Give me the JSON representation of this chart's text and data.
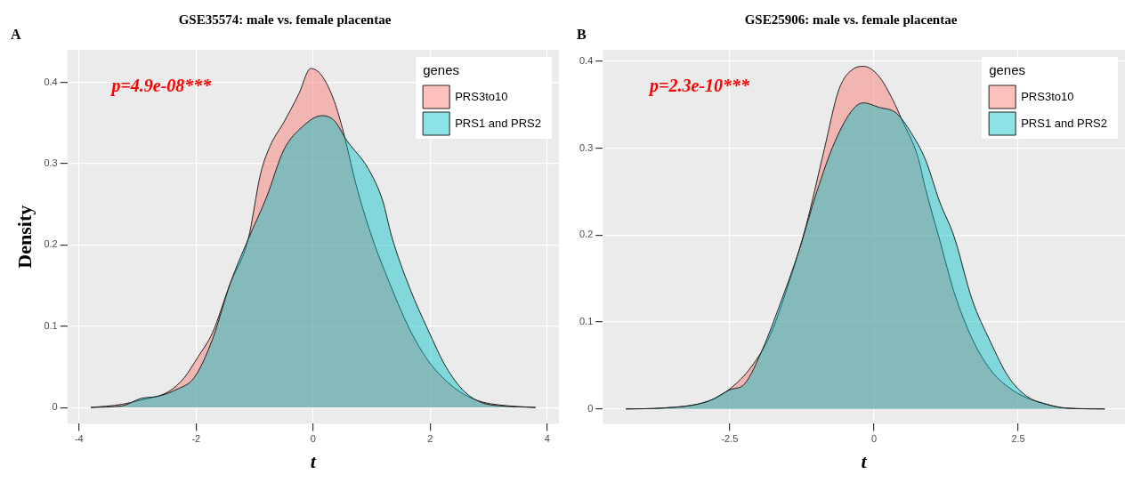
{
  "chart_data": [
    {
      "type": "area",
      "title": "GSE35574: male vs. female placentae",
      "xlabel": "t",
      "ylabel": "Density",
      "legend_title": "genes",
      "legend": "top right",
      "grid": true,
      "annotations": [
        "A",
        "p=4.9e-08***"
      ],
      "xlim": [
        -4.2,
        4.2
      ],
      "xticks": [
        -4,
        -2,
        0,
        2,
        4
      ],
      "ylim": [
        -0.02,
        0.44
      ],
      "yticks": [
        0,
        0.1,
        0.2,
        0.3,
        0.4
      ],
      "series": [
        {
          "name": "PRS3to10",
          "color": "#f8766d",
          "x": [
            -3.8,
            -3.26,
            -2.95,
            -2.46,
            -2.2,
            -1.97,
            -1.72,
            -1.42,
            -1.11,
            -0.9,
            -0.74,
            -0.5,
            -0.25,
            -0.04,
            0.15,
            0.36,
            0.52,
            0.73,
            0.98,
            1.34,
            1.65,
            1.96,
            2.27,
            2.58,
            2.88,
            3.2,
            3.8
          ],
          "values": [
            0,
            0.004,
            0.009,
            0.02,
            0.037,
            0.062,
            0.092,
            0.152,
            0.207,
            0.287,
            0.321,
            0.351,
            0.385,
            0.417,
            0.408,
            0.377,
            0.338,
            0.275,
            0.215,
            0.147,
            0.096,
            0.058,
            0.033,
            0.016,
            0.007,
            0.003,
            0
          ]
        },
        {
          "name": "PRS1 and PRS2",
          "color": "#00bfc4",
          "x": [
            -3.8,
            -3.26,
            -2.95,
            -2.64,
            -2.34,
            -2.03,
            -1.72,
            -1.42,
            -1.11,
            -0.8,
            -0.5,
            -0.19,
            0.15,
            0.36,
            0.58,
            0.94,
            1.19,
            1.34,
            1.65,
            1.96,
            2.27,
            2.58,
            2.88,
            3.2,
            3.8
          ],
          "values": [
            0,
            0.002,
            0.011,
            0.014,
            0.022,
            0.037,
            0.084,
            0.152,
            0.207,
            0.258,
            0.317,
            0.345,
            0.359,
            0.353,
            0.328,
            0.294,
            0.254,
            0.211,
            0.147,
            0.096,
            0.05,
            0.02,
            0.006,
            0.002,
            0
          ]
        }
      ]
    },
    {
      "type": "area",
      "title": "GSE25906: male vs. female placentae",
      "xlabel": "t",
      "legend_title": "genes",
      "legend": "top right",
      "grid": true,
      "annotations": [
        "B",
        "p=2.3e-10***"
      ],
      "xlim": [
        -4.7,
        4.35
      ],
      "xticks": [
        -2.5,
        0,
        2.5
      ],
      "ylim": [
        -0.017,
        0.413
      ],
      "yticks": [
        0,
        0.1,
        0.2,
        0.3,
        0.4
      ],
      "series": [
        {
          "name": "PRS3to10",
          "color": "#f8766d",
          "x": [
            -4.3,
            -3.68,
            -2.87,
            -2.5,
            -2.12,
            -1.8,
            -1.49,
            -1.18,
            -0.86,
            -0.61,
            -0.36,
            -0.18,
            0.08,
            0.33,
            0.48,
            0.76,
            0.89,
            1.14,
            1.39,
            1.7,
            2.02,
            2.33,
            2.64,
            2.96,
            3.33,
            4.0
          ],
          "values": [
            0,
            0.001,
            0.009,
            0.023,
            0.049,
            0.085,
            0.142,
            0.21,
            0.299,
            0.367,
            0.391,
            0.394,
            0.383,
            0.355,
            0.333,
            0.29,
            0.254,
            0.194,
            0.134,
            0.081,
            0.045,
            0.025,
            0.013,
            0.006,
            0.001,
            0
          ]
        },
        {
          "name": "PRS1 and PRS2",
          "color": "#00bfc4",
          "x": [
            -4.3,
            -3.68,
            -2.87,
            -2.5,
            -2.24,
            -1.93,
            -1.62,
            -1.3,
            -0.99,
            -0.68,
            -0.36,
            -0.18,
            0.08,
            0.39,
            0.64,
            0.89,
            1.14,
            1.39,
            1.7,
            2.02,
            2.33,
            2.64,
            2.96,
            3.33,
            4.0
          ],
          "values": [
            0,
            0.001,
            0.009,
            0.022,
            0.029,
            0.069,
            0.122,
            0.182,
            0.25,
            0.307,
            0.345,
            0.352,
            0.347,
            0.34,
            0.318,
            0.287,
            0.238,
            0.198,
            0.126,
            0.077,
            0.037,
            0.015,
            0.006,
            0.001,
            0
          ]
        }
      ]
    }
  ]
}
